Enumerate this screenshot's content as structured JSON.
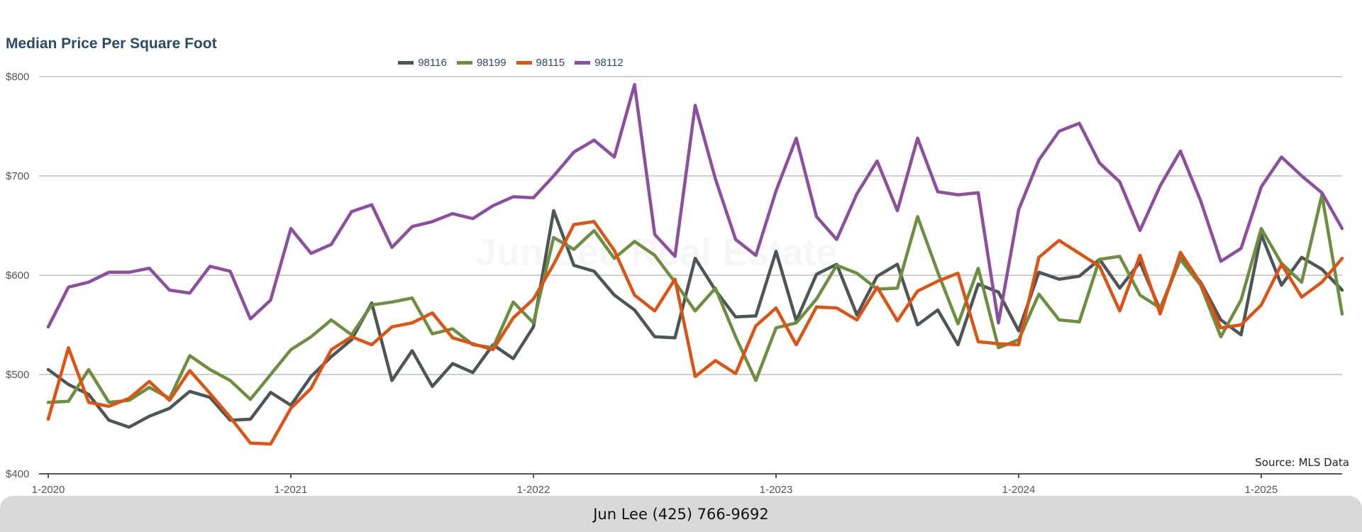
{
  "chart_data": {
    "type": "line",
    "title": "Median Price Per Square Foot",
    "source": "Source: MLS Data",
    "watermark": "Jun Lee Real Estate",
    "ylim": [
      400,
      800
    ],
    "y_ticks": [
      "$400",
      "$500",
      "$600",
      "$700",
      "$800"
    ],
    "y_tick_values": [
      400,
      500,
      600,
      700,
      800
    ],
    "x_range": [
      "2020-01",
      "2025-05"
    ],
    "x_ticks": [
      "1-2020",
      "1-2021",
      "1-2022",
      "1-2023",
      "1-2024",
      "1-2025"
    ],
    "x_tick_months": [
      "2020-01",
      "2021-01",
      "2022-01",
      "2023-01",
      "2024-01",
      "2025-01"
    ],
    "grid": true,
    "legend_position": "top-center",
    "x": [
      "2020-01",
      "2020-02",
      "2020-03",
      "2020-04",
      "2020-05",
      "2020-06",
      "2020-07",
      "2020-08",
      "2020-09",
      "2020-10",
      "2020-11",
      "2020-12",
      "2021-01",
      "2021-02",
      "2021-03",
      "2021-04",
      "2021-05",
      "2021-06",
      "2021-07",
      "2021-08",
      "2021-09",
      "2021-10",
      "2021-11",
      "2021-12",
      "2022-01",
      "2022-02",
      "2022-03",
      "2022-04",
      "2022-05",
      "2022-06",
      "2022-07",
      "2022-08",
      "2022-09",
      "2022-10",
      "2022-11",
      "2022-12",
      "2023-01",
      "2023-02",
      "2023-03",
      "2023-04",
      "2023-05",
      "2023-06",
      "2023-07",
      "2023-08",
      "2023-09",
      "2023-10",
      "2023-11",
      "2023-12",
      "2024-01",
      "2024-02",
      "2024-03",
      "2024-04",
      "2024-05",
      "2024-06",
      "2024-07",
      "2024-08",
      "2024-09",
      "2024-10",
      "2024-11",
      "2024-12",
      "2025-01",
      "2025-02",
      "2025-03",
      "2025-04",
      "2025-05"
    ],
    "series": [
      {
        "name": "98116",
        "color": "#4d5557",
        "values": [
          505,
          490,
          480,
          454,
          447,
          458,
          466,
          483,
          477,
          454,
          455,
          482,
          469,
          498,
          518,
          535,
          572,
          494,
          524,
          488,
          511,
          502,
          530,
          516,
          548,
          665,
          610,
          604,
          580,
          565,
          538,
          537,
          617,
          585,
          558,
          559,
          624,
          554,
          601,
          611,
          560,
          599,
          611,
          550,
          565,
          530,
          591,
          583,
          544,
          603,
          596,
          599,
          616,
          587,
          613,
          565,
          617,
          593,
          555,
          540,
          641,
          590,
          618,
          606,
          585
        ]
      },
      {
        "name": "98199",
        "color": "#6b8f3f",
        "values": [
          472,
          473,
          505,
          472,
          474,
          487,
          476,
          519,
          505,
          494,
          475,
          500,
          525,
          538,
          555,
          540,
          570,
          573,
          577,
          541,
          546,
          530,
          527,
          573,
          552,
          638,
          626,
          645,
          617,
          634,
          620,
          593,
          564,
          587,
          538,
          494,
          547,
          552,
          576,
          610,
          602,
          586,
          587,
          659,
          603,
          551,
          607,
          527,
          535,
          581,
          555,
          553,
          616,
          619,
          580,
          567,
          616,
          590,
          538,
          575,
          647,
          612,
          593,
          681,
          561
        ]
      },
      {
        "name": "98115",
        "color": "#dc5314",
        "values": [
          455,
          527,
          472,
          468,
          476,
          493,
          474,
          504,
          481,
          457,
          431,
          430,
          466,
          486,
          525,
          538,
          530,
          548,
          552,
          562,
          537,
          531,
          525,
          557,
          576,
          611,
          651,
          654,
          625,
          580,
          564,
          596,
          498,
          514,
          501,
          549,
          567,
          530,
          568,
          567,
          555,
          588,
          554,
          584,
          594,
          602,
          533,
          531,
          530,
          618,
          635,
          622,
          609,
          564,
          620,
          561,
          623,
          592,
          547,
          550,
          570,
          611,
          578,
          593,
          617
        ]
      },
      {
        "name": "98112",
        "color": "#8c4f9f",
        "values": [
          548,
          588,
          593,
          603,
          603,
          607,
          585,
          582,
          609,
          604,
          556,
          575,
          647,
          622,
          631,
          664,
          671,
          628,
          649,
          654,
          662,
          657,
          670,
          679,
          678,
          700,
          724,
          736,
          719,
          792,
          641,
          619,
          771,
          697,
          636,
          620,
          685,
          738,
          659,
          636,
          682,
          715,
          665,
          738,
          684,
          681,
          683,
          552,
          666,
          716,
          745,
          753,
          713,
          694,
          645,
          690,
          725,
          675,
          614,
          627,
          689,
          719,
          700,
          683,
          647
        ]
      }
    ]
  },
  "footer": {
    "contact": "Jun Lee (425) 766-9692"
  }
}
